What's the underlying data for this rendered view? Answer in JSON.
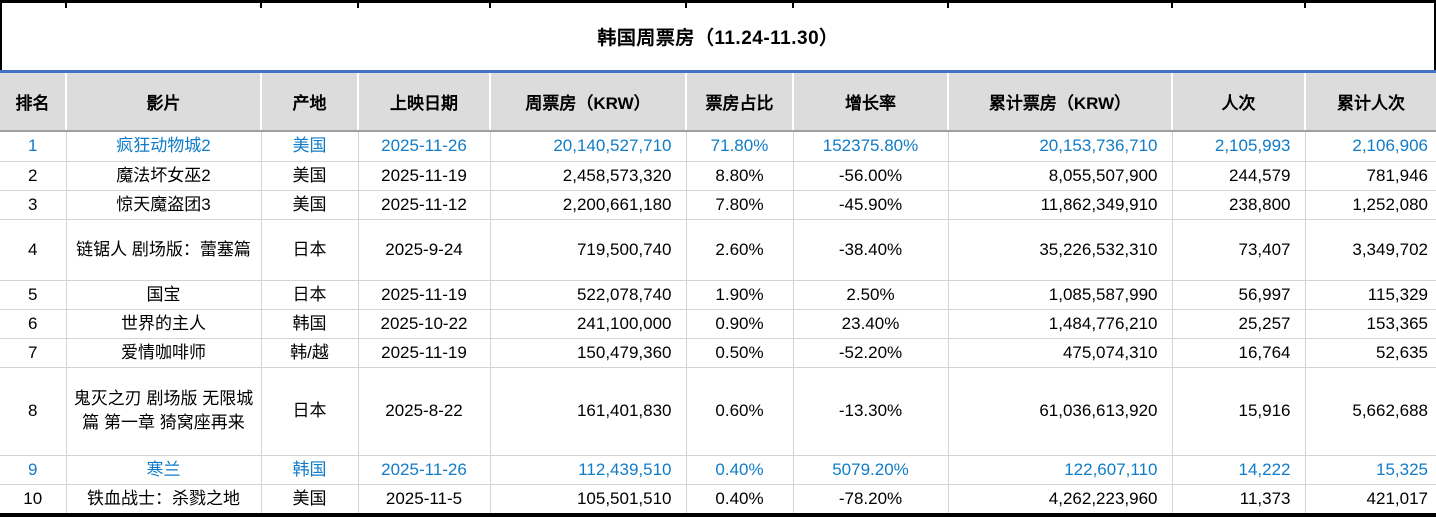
{
  "title": "韩国周票房（11.24-11.30）",
  "columns": [
    {
      "key": "rank",
      "label": "排名"
    },
    {
      "key": "film",
      "label": "影片"
    },
    {
      "key": "origin",
      "label": "产地"
    },
    {
      "key": "release_date",
      "label": "上映日期"
    },
    {
      "key": "weekly_gross",
      "label": "周票房（KRW）"
    },
    {
      "key": "share",
      "label": "票房占比"
    },
    {
      "key": "growth",
      "label": "增长率"
    },
    {
      "key": "cumulative_gross",
      "label": "累计票房（KRW）"
    },
    {
      "key": "admissions",
      "label": "人次"
    },
    {
      "key": "cumulative_admissions",
      "label": "累计人次"
    }
  ],
  "rows": [
    {
      "rank": "1",
      "film": "疯狂动物城2",
      "origin": "美国",
      "release_date": "2025-11-26",
      "weekly_gross": "20,140,527,710",
      "share": "71.80%",
      "growth": "152375.80%",
      "cumulative_gross": "20,153,736,710",
      "admissions": "2,105,993",
      "cumulative_admissions": "2,106,906",
      "highlighted": true
    },
    {
      "rank": "2",
      "film": "魔法坏女巫2",
      "origin": "美国",
      "release_date": "2025-11-19",
      "weekly_gross": "2,458,573,320",
      "share": "8.80%",
      "growth": "-56.00%",
      "cumulative_gross": "8,055,507,900",
      "admissions": "244,579",
      "cumulative_admissions": "781,946",
      "highlighted": false
    },
    {
      "rank": "3",
      "film": "惊天魔盗团3",
      "origin": "美国",
      "release_date": "2025-11-12",
      "weekly_gross": "2,200,661,180",
      "share": "7.80%",
      "growth": "-45.90%",
      "cumulative_gross": "11,862,349,910",
      "admissions": "238,800",
      "cumulative_admissions": "1,252,080",
      "highlighted": false
    },
    {
      "rank": "4",
      "film": "链锯人 剧场版：蕾塞篇",
      "origin": "日本",
      "release_date": "2025-9-24",
      "weekly_gross": "719,500,740",
      "share": "2.60%",
      "growth": "-38.40%",
      "cumulative_gross": "35,226,532,310",
      "admissions": "73,407",
      "cumulative_admissions": "3,349,702",
      "highlighted": false
    },
    {
      "rank": "5",
      "film": "国宝",
      "origin": "日本",
      "release_date": "2025-11-19",
      "weekly_gross": "522,078,740",
      "share": "1.90%",
      "growth": "2.50%",
      "cumulative_gross": "1,085,587,990",
      "admissions": "56,997",
      "cumulative_admissions": "115,329",
      "highlighted": false
    },
    {
      "rank": "6",
      "film": "世界的主人",
      "origin": "韩国",
      "release_date": "2025-10-22",
      "weekly_gross": "241,100,000",
      "share": "0.90%",
      "growth": "23.40%",
      "cumulative_gross": "1,484,776,210",
      "admissions": "25,257",
      "cumulative_admissions": "153,365",
      "highlighted": false
    },
    {
      "rank": "7",
      "film": "爱情咖啡师",
      "origin": "韩/越",
      "release_date": "2025-11-19",
      "weekly_gross": "150,479,360",
      "share": "0.50%",
      "growth": "-52.20%",
      "cumulative_gross": "475,074,310",
      "admissions": "16,764",
      "cumulative_admissions": "52,635",
      "highlighted": false
    },
    {
      "rank": "8",
      "film": "鬼灭之刃 剧场版 无限城篇 第一章 猗窝座再来",
      "origin": "日本",
      "release_date": "2025-8-22",
      "weekly_gross": "161,401,830",
      "share": "0.60%",
      "growth": "-13.30%",
      "cumulative_gross": "61,036,613,920",
      "admissions": "15,916",
      "cumulative_admissions": "5,662,688",
      "highlighted": false
    },
    {
      "rank": "9",
      "film": "寒兰",
      "origin": "韩国",
      "release_date": "2025-11-26",
      "weekly_gross": "112,439,510",
      "share": "0.40%",
      "growth": "5079.20%",
      "cumulative_gross": "122,607,110",
      "admissions": "14,222",
      "cumulative_admissions": "15,325",
      "highlighted": true
    },
    {
      "rank": "10",
      "film": "铁血战士：杀戮之地",
      "origin": "美国",
      "release_date": "2025-11-5",
      "weekly_gross": "105,501,510",
      "share": "0.40%",
      "growth": "-78.20%",
      "cumulative_gross": "4,262,223,960",
      "admissions": "11,373",
      "cumulative_admissions": "421,017",
      "highlighted": false
    }
  ],
  "colors": {
    "accent_line": "#4472C4",
    "highlight_text": "#107CC9",
    "header_bg": "#DCDCDC",
    "grid_line": "#D4D4D4",
    "header_underline": "#9E9E9E",
    "border_black": "#000000"
  }
}
